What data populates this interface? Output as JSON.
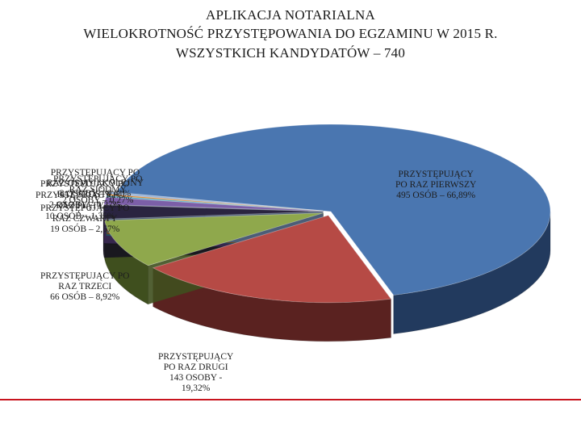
{
  "header": {
    "line1": "APLIKACJA NOTARIALNA",
    "line2": "WIELOKROTNOŚĆ PRZYSTĘPOWANIA DO EGZAMINU W 2015 R.",
    "line3": "WSZYSTKICH KANDYDATÓW – 740"
  },
  "chart_data": {
    "type": "pie",
    "title": "WIELOKROTNOŚĆ PRZYSTĘPOWANIA DO EGZAMINU W 2015 R.",
    "total_label": "WSZYSTKICH KANDYDATÓW – 740",
    "slices": [
      {
        "label_lines": [
          "PRZYSTĘPUJĄCY",
          "PO RAZ PIERWSZY",
          "495 OSÓB – 66,89%"
        ],
        "count": 495,
        "percent": 66.89,
        "color": "#4a76b0",
        "side": "#223a5e"
      },
      {
        "label_lines": [
          "PRZYSTĘPUJĄCY",
          "PO RAZ DRUGI",
          "143 OSOBY -",
          "19,32%"
        ],
        "count": 143,
        "percent": 19.32,
        "color": "#b64a45",
        "side": "#5a2220"
      },
      {
        "label_lines": [
          "PRZYSTĘPUJĄCY PO",
          "RAZ TRZECI",
          "66 OSÓB – 8,92%"
        ],
        "count": 66,
        "percent": 8.92,
        "color": "#8fa84c",
        "side": "#3f4f1e"
      },
      {
        "label_lines": [
          "PRZYSTĘPUJĄCY PO",
          "RAZ CZWARTY",
          "19 OSÓB – 2,57%"
        ],
        "count": 19,
        "percent": 2.57,
        "color": "#2a2440",
        "side": "#15121f"
      },
      {
        "label_lines": [
          "PRZYSTĘPUJĄCY PO",
          "RAZ PIĄTY",
          "10 OSÓB – 1,35%"
        ],
        "count": 10,
        "percent": 1.35,
        "color": "#7c5fa8",
        "side": "#3a2a52"
      },
      {
        "label_lines": [
          "PRZYSTĘPUJĄCY PO",
          "RAZ SZÓSTY",
          "2 OSOBY – 0,27%"
        ],
        "count": 2,
        "percent": 0.27,
        "color": "#3fa3c0",
        "side": "#1d5463"
      },
      {
        "label_lines": [
          "PRZYSTĘPUJĄCY PO",
          "RAZ SIÓDMY",
          "2 OSOBY – 0,27%"
        ],
        "count": 2,
        "percent": 0.27,
        "color": "#e0892e",
        "side": "#7a4614"
      },
      {
        "label_lines": [
          "PRZYSTĘPUJĄCY PO",
          "RAZ ÓSMY I KOLEJNY",
          "3 OSOBY – 0,41%"
        ],
        "count": 3,
        "percent": 0.41,
        "color": "#9bb5d8",
        "side": "#4b5d78"
      }
    ]
  }
}
